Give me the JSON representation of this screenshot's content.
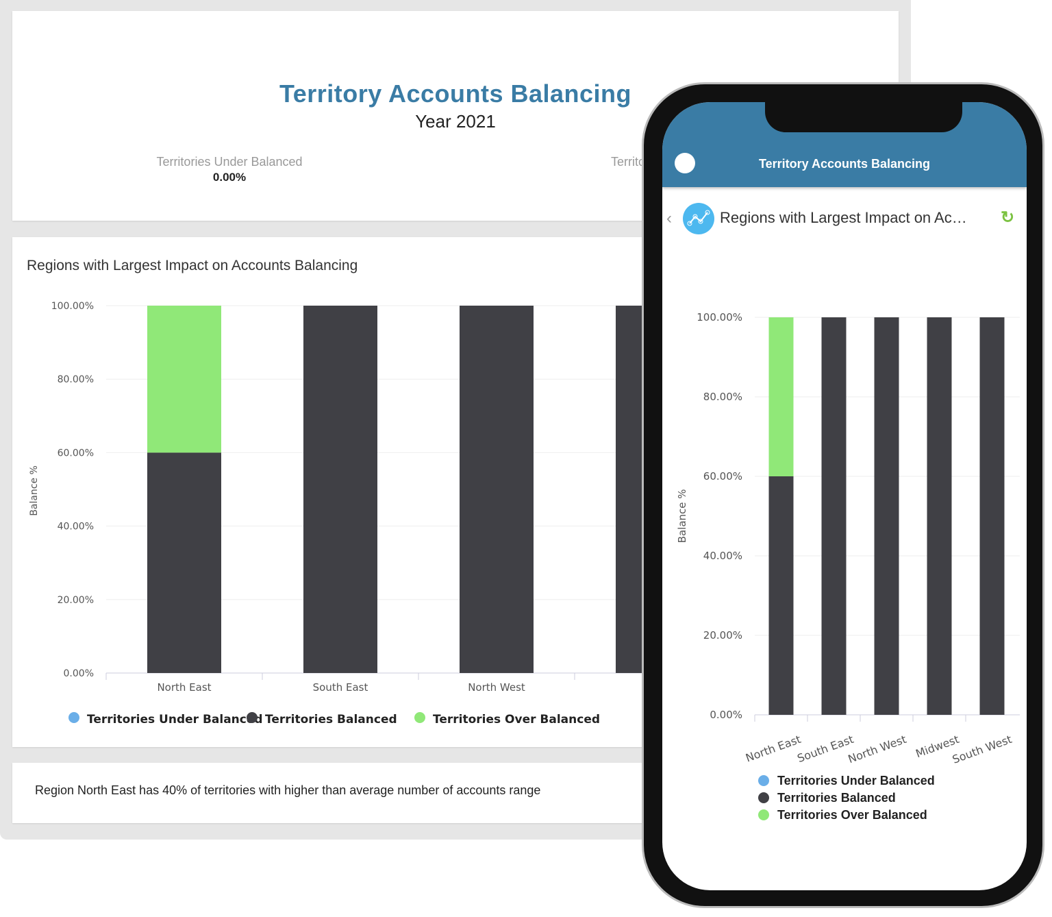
{
  "dashboard": {
    "title": "Territory Accounts Balancing",
    "subtitle": "Year 2021",
    "kpis": [
      {
        "label": "Territories Under Balanced",
        "value": "0.00%"
      },
      {
        "label": "Territo",
        "value": ""
      }
    ],
    "note": "Region North East has 40% of territories with higher than average number of accounts range"
  },
  "mobile": {
    "app_title": "Territory Accounts Balancing",
    "chart_title": "Regions with Largest Impact on Ac…",
    "back_icon": "chevron-left-icon",
    "refresh_icon": "refresh-icon",
    "chart_icon": "line-chart-icon"
  },
  "colors": {
    "under": "#6aaee8",
    "balanced": "#404045",
    "over": "#90e878",
    "brand": "#3a7ca5"
  },
  "chart_data": {
    "type": "bar",
    "stacked": true,
    "title": "Regions with Largest Impact on Accounts Balancing",
    "ylabel": "Balance %",
    "ylim": [
      0,
      100
    ],
    "yticks": [
      "0.00%",
      "20.00%",
      "40.00%",
      "60.00%",
      "80.00%",
      "100.00%"
    ],
    "categories": [
      "North East",
      "South East",
      "North West",
      "Midwest",
      "South West"
    ],
    "series": [
      {
        "name": "Territories Under Balanced",
        "values": [
          0,
          0,
          0,
          0,
          0
        ]
      },
      {
        "name": "Territories Balanced",
        "values": [
          60,
          100,
          100,
          100,
          100
        ]
      },
      {
        "name": "Territories Over Balanced",
        "values": [
          40,
          0,
          0,
          0,
          0
        ]
      }
    ],
    "grid": true,
    "legend": "bottom"
  }
}
